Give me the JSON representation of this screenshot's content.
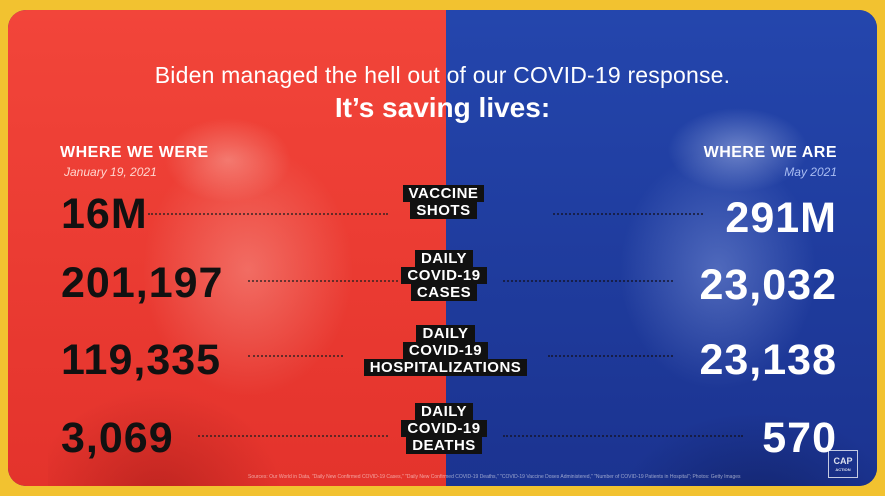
{
  "headline": "Biden managed the hell out of our COVID-19 response.",
  "subheadline": "It’s saving lives:",
  "left_column": {
    "heading": "WHERE WE WERE",
    "date": "January 19, 2021"
  },
  "right_column": {
    "heading": "WHERE WE ARE",
    "date": "May 2021"
  },
  "rows": [
    {
      "label_lines": [
        "VACCINE",
        "SHOTS"
      ],
      "before": "16M",
      "after": "291M"
    },
    {
      "label_lines": [
        "DAILY",
        "COVID-19",
        "CASES"
      ],
      "before": "201,197",
      "after": "23,032"
    },
    {
      "label_lines": [
        "DAILY",
        "COVID-19",
        "HOSPITALIZATIONS"
      ],
      "before": "119,335",
      "after": "23,138"
    },
    {
      "label_lines": [
        "DAILY",
        "COVID-19",
        "DEATHS"
      ],
      "before": "3,069",
      "after": "570"
    }
  ],
  "source": "Sources: Our World in Data, \"Daily New Confirmed COVID-19 Cases,\" \"Daily New Confirmed COVID-19 Deaths,\" \"COVID-19 Vaccine Doses Administered,\" \"Number of COVID-19 Patients in Hospital\"; Photos: Getty Images",
  "logo": {
    "line1": "CAP",
    "line2": "ACTION"
  },
  "colors": {
    "left_bg": "#e4332c",
    "right_bg": "#1e3592",
    "frame": "#f2c230"
  }
}
